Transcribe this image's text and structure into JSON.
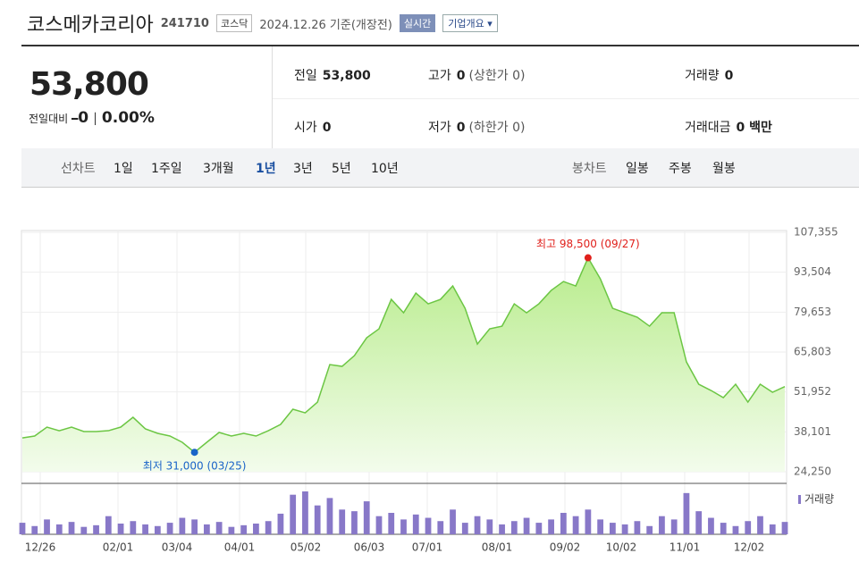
{
  "header": {
    "name": "코스메카코리아",
    "code": "241710",
    "market": "코스닥",
    "date": "2024.12.26 기준(개장전)",
    "realtime": "실시간",
    "company": "기업개요"
  },
  "quote": {
    "price": "53,800",
    "change_label": "전일대비",
    "change": "0",
    "rate": "0.00%"
  },
  "info": [
    [
      {
        "label": "전일",
        "value": "53,800"
      },
      {
        "label": "고가",
        "value": "0",
        "extra": "(상한가 0)"
      },
      {
        "label": "거래량",
        "value": "0"
      }
    ],
    [
      {
        "label": "시가",
        "value": "0"
      },
      {
        "label": "저가",
        "value": "0",
        "extra": "(하한가 0)"
      },
      {
        "label": "거래대금",
        "value": "0 백만"
      }
    ]
  ],
  "tabs": {
    "line_label": "선차트",
    "line": [
      "1일",
      "1주일",
      "3개월",
      "1년",
      "3년",
      "5년",
      "10년"
    ],
    "selected": 3,
    "candle_label": "봉차트",
    "candle": [
      "일봉",
      "주봉",
      "월봉"
    ]
  },
  "chart_data": {
    "type": "line",
    "color": "#6cc644",
    "values": [
      36000,
      36650,
      39750,
      38500,
      39750,
      38200,
      38200,
      38500,
      39750,
      43160,
      39140,
      37580,
      36650,
      34480,
      31000,
      34480,
      37890,
      36650,
      37580,
      36650,
      38500,
      40680,
      45950,
      44700,
      48430,
      61450,
      60830,
      64550,
      70750,
      73850,
      84080,
      79430,
      86250,
      82530,
      84080,
      88730,
      80980,
      68580,
      73850,
      74780,
      82530,
      79430,
      82530,
      87180,
      90280,
      88730,
      98500,
      91210,
      80980,
      79430,
      77880,
      74780,
      79430,
      79430,
      62380,
      54630,
      52460,
      49980,
      54630,
      48430,
      54630,
      51840,
      53800
    ],
    "ylim": [
      24250,
      107355
    ],
    "yticks": [
      {
        "value": 24250,
        "label": "24,250"
      },
      {
        "value": 38101,
        "label": "38,101"
      },
      {
        "value": 51952,
        "label": "51,952"
      },
      {
        "value": 65803,
        "label": "65,803"
      },
      {
        "value": 79653,
        "label": "79,653"
      },
      {
        "value": 93504,
        "label": "93,504"
      },
      {
        "value": 107355,
        "label": "107,355"
      }
    ],
    "xticks": [
      "12/26",
      "02/01",
      "03/04",
      "04/01",
      "05/02",
      "06/03",
      "07/01",
      "08/01",
      "09/02",
      "10/02",
      "11/01",
      "12/02"
    ],
    "grid": true,
    "annotations": [
      {
        "text": "최고 98,500 (09/27)",
        "value": 98500,
        "color": "#e0201b"
      },
      {
        "text": "최저 31,000 (03/25)",
        "value": 31000,
        "color": "#1a64c8"
      }
    ],
    "volume": {
      "name": "거래량",
      "color": "#8878c8",
      "values": [
        14,
        10,
        18,
        12,
        15,
        9,
        11,
        22,
        13,
        16,
        12,
        10,
        14,
        20,
        18,
        12,
        15,
        9,
        11,
        13,
        16,
        25,
        48,
        52,
        35,
        44,
        30,
        28,
        40,
        22,
        26,
        18,
        24,
        20,
        16,
        30,
        14,
        22,
        18,
        12,
        16,
        20,
        14,
        18,
        26,
        22,
        30,
        18,
        14,
        12,
        16,
        10,
        22,
        18,
        50,
        28,
        20,
        14,
        10,
        16,
        22,
        12,
        15
      ]
    }
  }
}
